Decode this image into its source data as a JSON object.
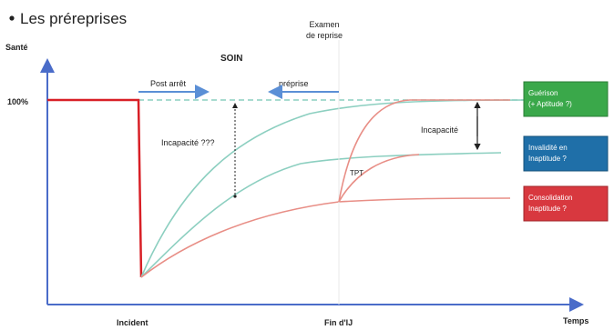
{
  "slide": {
    "title": "Les préreprises"
  },
  "axes": {
    "y_label": "Santé",
    "x_label": "Temps",
    "y_tick_100": "100%",
    "x_tick_incident": "Incident",
    "x_tick_fin": "Fin d'IJ"
  },
  "annotations": {
    "examen_line1": "Examen",
    "examen_line2": "de reprise",
    "soin": "SOIN",
    "post_arret": "Post arrêt",
    "prereprise": "préprise",
    "incapacite_qqq": "Incapacité ???",
    "incapacite": "Incapacité",
    "tpt": "TPT"
  },
  "legend_boxes": [
    {
      "line1": "Guérison",
      "line2": "(+ Aptitude ?)",
      "color": "#3aa84a"
    },
    {
      "line1": "Invalidité en",
      "line2": "Inaptitude ?",
      "color": "#1f6fa8"
    },
    {
      "line1": "Consolidation",
      "line2": "Inaptitude ?",
      "color": "#d8383f"
    }
  ],
  "colors": {
    "teal_curve": "#8ccfc0",
    "red_curve": "#e88e86",
    "red_line": "#d81f26",
    "axis": "#4a6cc9",
    "arrow_blue": "#5b8fd6"
  }
}
